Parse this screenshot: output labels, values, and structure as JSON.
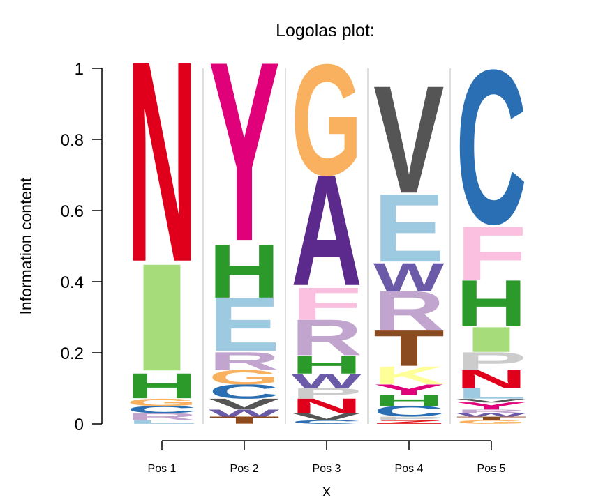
{
  "chart_data": {
    "type": "sequence-logo",
    "title": "Logolas plot:",
    "xlabel": "X",
    "ylabel": "Information content",
    "ylim": [
      0,
      1
    ],
    "yticks": [
      "0",
      "0.2",
      "0.4",
      "0.6",
      "0.8",
      "1"
    ],
    "ytick_values": [
      0,
      0.2,
      0.4,
      0.6,
      0.8,
      1
    ],
    "grid": false,
    "colors": {
      "N": "#e0001b",
      "I": "#a6dc7a",
      "H": "#2b9a2b",
      "G": "#f9b15f",
      "C": "#2a6fb4",
      "R": "#c2a5cf",
      "L": "#9ecae1",
      "Y": "#e0007a",
      "E": "#9ecae1",
      "V": "#555555",
      "T": "#8c4a1f",
      "A": "#5b2a8c",
      "F": "#fbc0e0",
      "W": "#6a5aa8",
      "P": "#cccccc",
      "K": "#ffff99",
      "Z": "#e31a1c"
    },
    "positions": [
      {
        "label": "Pos 1",
        "letters": [
          {
            "char": "L",
            "value": 0.01
          },
          {
            "char": "R",
            "value": 0.02
          },
          {
            "char": "C",
            "value": 0.02
          },
          {
            "char": "G",
            "value": 0.02
          },
          {
            "char": "H",
            "value": 0.07
          },
          {
            "char": "I",
            "value": 0.3
          },
          {
            "char": "N",
            "value": 0.56
          }
        ]
      },
      {
        "label": "Pos 2",
        "letters": [
          {
            "char": "T",
            "value": 0.02
          },
          {
            "char": "W",
            "value": 0.02
          },
          {
            "char": "V",
            "value": 0.03
          },
          {
            "char": "C",
            "value": 0.04
          },
          {
            "char": "G",
            "value": 0.04
          },
          {
            "char": "R",
            "value": 0.05
          },
          {
            "char": "E",
            "value": 0.15
          },
          {
            "char": "H",
            "value": 0.15
          },
          {
            "char": "Y",
            "value": 0.5
          }
        ]
      },
      {
        "label": "Pos 3",
        "letters": [
          {
            "char": "C",
            "value": 0.01
          },
          {
            "char": "V",
            "value": 0.02
          },
          {
            "char": "N",
            "value": 0.04
          },
          {
            "char": "P",
            "value": 0.03
          },
          {
            "char": "W",
            "value": 0.04
          },
          {
            "char": "H",
            "value": 0.05
          },
          {
            "char": "R",
            "value": 0.1
          },
          {
            "char": "F",
            "value": 0.09
          },
          {
            "char": "A",
            "value": 0.31
          },
          {
            "char": "G",
            "value": 0.31
          }
        ]
      },
      {
        "label": "Pos 4",
        "letters": [
          {
            "char": "Z",
            "value": 0.01
          },
          {
            "char": "P",
            "value": 0.01
          },
          {
            "char": "C",
            "value": 0.03
          },
          {
            "char": "H",
            "value": 0.03
          },
          {
            "char": "Y",
            "value": 0.03
          },
          {
            "char": "K",
            "value": 0.05
          },
          {
            "char": "T",
            "value": 0.1
          },
          {
            "char": "R",
            "value": 0.11
          },
          {
            "char": "W",
            "value": 0.08
          },
          {
            "char": "E",
            "value": 0.19
          },
          {
            "char": "V",
            "value": 0.3
          }
        ]
      },
      {
        "label": "Pos 5",
        "letters": [
          {
            "char": "G",
            "value": 0.01
          },
          {
            "char": "T",
            "value": 0.01
          },
          {
            "char": "W",
            "value": 0.01
          },
          {
            "char": "R",
            "value": 0.01
          },
          {
            "char": "Y",
            "value": 0.02
          },
          {
            "char": "V",
            "value": 0.01
          },
          {
            "char": "L",
            "value": 0.03
          },
          {
            "char": "N",
            "value": 0.05
          },
          {
            "char": "P",
            "value": 0.05
          },
          {
            "char": "I",
            "value": 0.07
          },
          {
            "char": "H",
            "value": 0.13
          },
          {
            "char": "F",
            "value": 0.15
          },
          {
            "char": "C",
            "value": 0.43
          }
        ]
      }
    ]
  }
}
